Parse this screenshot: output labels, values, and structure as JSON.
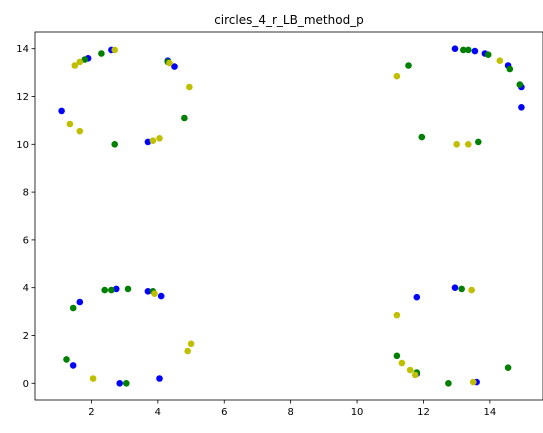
{
  "chart_data": {
    "type": "scatter",
    "title": "circles_4_r_LB_method_p",
    "xlabel": "",
    "ylabel": "",
    "xlim": [
      0.3,
      15.6
    ],
    "ylim": [
      -0.7,
      14.7
    ],
    "xticks": [
      2,
      4,
      6,
      8,
      10,
      12,
      14
    ],
    "yticks": [
      0,
      2,
      4,
      6,
      8,
      10,
      12,
      14
    ],
    "grid": false,
    "legend": "none",
    "series": [
      {
        "color": "#0000ff",
        "points": [
          [
            1.1,
            11.4
          ],
          [
            1.9,
            13.6
          ],
          [
            2.6,
            13.95
          ],
          [
            3.7,
            10.1
          ],
          [
            4.3,
            13.5
          ],
          [
            4.5,
            13.25
          ],
          [
            12.95,
            14.0
          ],
          [
            13.55,
            13.9
          ],
          [
            13.85,
            13.8
          ],
          [
            14.55,
            13.3
          ],
          [
            14.95,
            12.4
          ],
          [
            14.95,
            11.55
          ],
          [
            1.45,
            0.75
          ],
          [
            1.65,
            3.4
          ],
          [
            2.75,
            3.95
          ],
          [
            2.85,
            0.0
          ],
          [
            3.7,
            3.85
          ],
          [
            4.05,
            0.2
          ],
          [
            4.1,
            3.65
          ],
          [
            11.8,
            3.6
          ],
          [
            12.95,
            4.0
          ],
          [
            11.8,
            0.4
          ],
          [
            13.6,
            0.05
          ]
        ]
      },
      {
        "color": "#008000",
        "points": [
          [
            1.8,
            13.55
          ],
          [
            2.3,
            13.8
          ],
          [
            2.7,
            10.0
          ],
          [
            4.3,
            13.45
          ],
          [
            4.8,
            11.1
          ],
          [
            13.2,
            13.95
          ],
          [
            13.35,
            13.95
          ],
          [
            13.95,
            13.75
          ],
          [
            14.6,
            13.15
          ],
          [
            14.9,
            12.5
          ],
          [
            11.95,
            10.3
          ],
          [
            13.65,
            10.1
          ],
          [
            11.55,
            13.3
          ],
          [
            1.25,
            1.0
          ],
          [
            1.45,
            3.15
          ],
          [
            2.4,
            3.9
          ],
          [
            2.6,
            3.9
          ],
          [
            3.1,
            3.95
          ],
          [
            3.05,
            0.0
          ],
          [
            3.85,
            3.85
          ],
          [
            11.2,
            1.15
          ],
          [
            11.8,
            0.45
          ],
          [
            13.15,
            3.95
          ],
          [
            12.75,
            0.0
          ],
          [
            14.55,
            0.65
          ]
        ]
      },
      {
        "color": "#bfbf00",
        "points": [
          [
            1.5,
            13.3
          ],
          [
            1.65,
            13.45
          ],
          [
            2.7,
            13.95
          ],
          [
            1.35,
            10.85
          ],
          [
            1.65,
            10.55
          ],
          [
            3.85,
            10.15
          ],
          [
            4.05,
            10.25
          ],
          [
            4.35,
            13.4
          ],
          [
            4.95,
            12.4
          ],
          [
            11.2,
            12.85
          ],
          [
            13.0,
            10.0
          ],
          [
            13.35,
            10.0
          ],
          [
            14.3,
            13.5
          ],
          [
            2.05,
            0.2
          ],
          [
            3.9,
            3.75
          ],
          [
            4.9,
            1.35
          ],
          [
            5.0,
            1.65
          ],
          [
            11.2,
            2.85
          ],
          [
            11.35,
            0.85
          ],
          [
            11.6,
            0.55
          ],
          [
            11.75,
            0.35
          ],
          [
            13.45,
            3.9
          ],
          [
            13.5,
            0.05
          ]
        ]
      }
    ]
  }
}
